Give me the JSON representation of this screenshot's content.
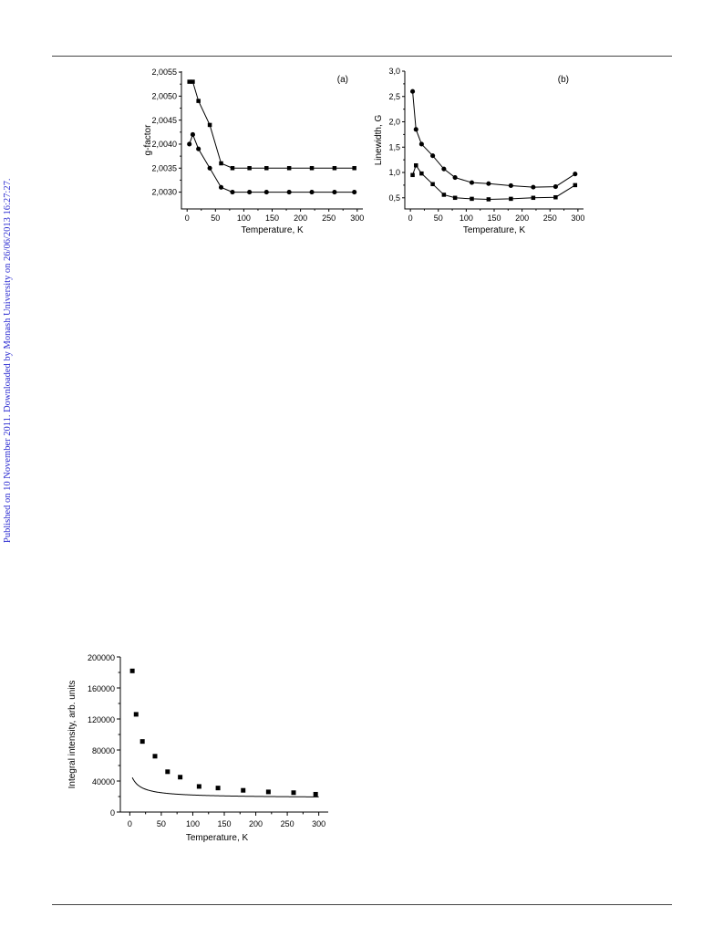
{
  "page": {
    "side_note": "Published on 10 November 2011. Downloaded by Monash University on 26/06/2013 16:27:27."
  },
  "chart_data": [
    {
      "id": "a",
      "type": "line",
      "panel_label": "(a)",
      "xlabel": "Temperature, K",
      "ylabel": "g-factor",
      "xlim": [
        -10,
        310
      ],
      "ylim": [
        2.00265,
        2.00552
      ],
      "xticks": [
        0,
        50,
        100,
        150,
        200,
        250,
        300
      ],
      "yticks": [
        2.003,
        2.0035,
        2.004,
        2.0045,
        2.005,
        2.0055
      ],
      "ytick_labels": [
        "2,0030",
        "2,0035",
        "2,0040",
        "2,0045",
        "2,0050",
        "2,0055"
      ],
      "grid": false,
      "series": [
        {
          "marker": "square",
          "x": [
            4,
            10,
            20,
            40,
            60,
            80,
            110,
            140,
            180,
            220,
            260,
            295
          ],
          "y": [
            2.0053,
            2.0053,
            2.0049,
            2.0044,
            2.0036,
            2.0035,
            2.0035,
            2.0035,
            2.0035,
            2.0035,
            2.0035,
            2.0035
          ]
        },
        {
          "marker": "circle",
          "x": [
            4,
            10,
            20,
            40,
            60,
            80,
            110,
            140,
            180,
            220,
            260,
            295
          ],
          "y": [
            2.004,
            2.0042,
            2.0039,
            2.0035,
            2.0031,
            2.003,
            2.003,
            2.003,
            2.003,
            2.003,
            2.003,
            2.003
          ]
        }
      ]
    },
    {
      "id": "b",
      "type": "line",
      "panel_label": "(b)",
      "xlabel": "Temperature, K",
      "ylabel": "Linewidth, G",
      "xlim": [
        -10,
        310
      ],
      "ylim": [
        0.28,
        3.0
      ],
      "xticks": [
        0,
        50,
        100,
        150,
        200,
        250,
        300
      ],
      "yticks": [
        0.5,
        1.0,
        1.5,
        2.0,
        2.5,
        3.0
      ],
      "ytick_labels": [
        "0,5",
        "1,0",
        "1,5",
        "2,0",
        "2,5",
        "3,0"
      ],
      "grid": false,
      "series": [
        {
          "marker": "circle",
          "x": [
            4,
            10,
            20,
            40,
            60,
            80,
            110,
            140,
            180,
            220,
            260,
            295
          ],
          "y": [
            2.6,
            1.85,
            1.56,
            1.33,
            1.07,
            0.9,
            0.8,
            0.78,
            0.74,
            0.71,
            0.72,
            0.97
          ]
        },
        {
          "marker": "square",
          "x": [
            4,
            10,
            20,
            40,
            60,
            80,
            110,
            140,
            180,
            220,
            260,
            295
          ],
          "y": [
            0.95,
            1.14,
            0.98,
            0.77,
            0.56,
            0.5,
            0.48,
            0.47,
            0.48,
            0.5,
            0.51,
            0.75
          ]
        }
      ]
    },
    {
      "id": "c",
      "type": "scatter",
      "panel_label": "",
      "xlabel": "Temperature, K",
      "ylabel": "Integral intensity, arb. units",
      "xlim": [
        -15,
        315
      ],
      "ylim": [
        0,
        200000
      ],
      "xticks": [
        0,
        50,
        100,
        150,
        200,
        250,
        300
      ],
      "yticks": [
        0,
        40000,
        80000,
        120000,
        160000,
        200000
      ],
      "ytick_labels": [
        "0",
        "40000",
        "80000",
        "120000",
        "160000",
        "200000"
      ],
      "grid": false,
      "series": [
        {
          "marker": "square",
          "x": [
            4,
            10,
            20,
            40,
            60,
            80,
            110,
            140,
            180,
            220,
            260,
            295
          ],
          "y": [
            182000,
            126000,
            91000,
            72000,
            52000,
            45000,
            33000,
            31000,
            28000,
            26000,
            25000,
            23000
          ]
        }
      ],
      "fit_curve": {
        "form": "y = 18000 + 300000 / (x + 10)^0.92",
        "x_range": [
          4,
          300
        ]
      }
    }
  ]
}
